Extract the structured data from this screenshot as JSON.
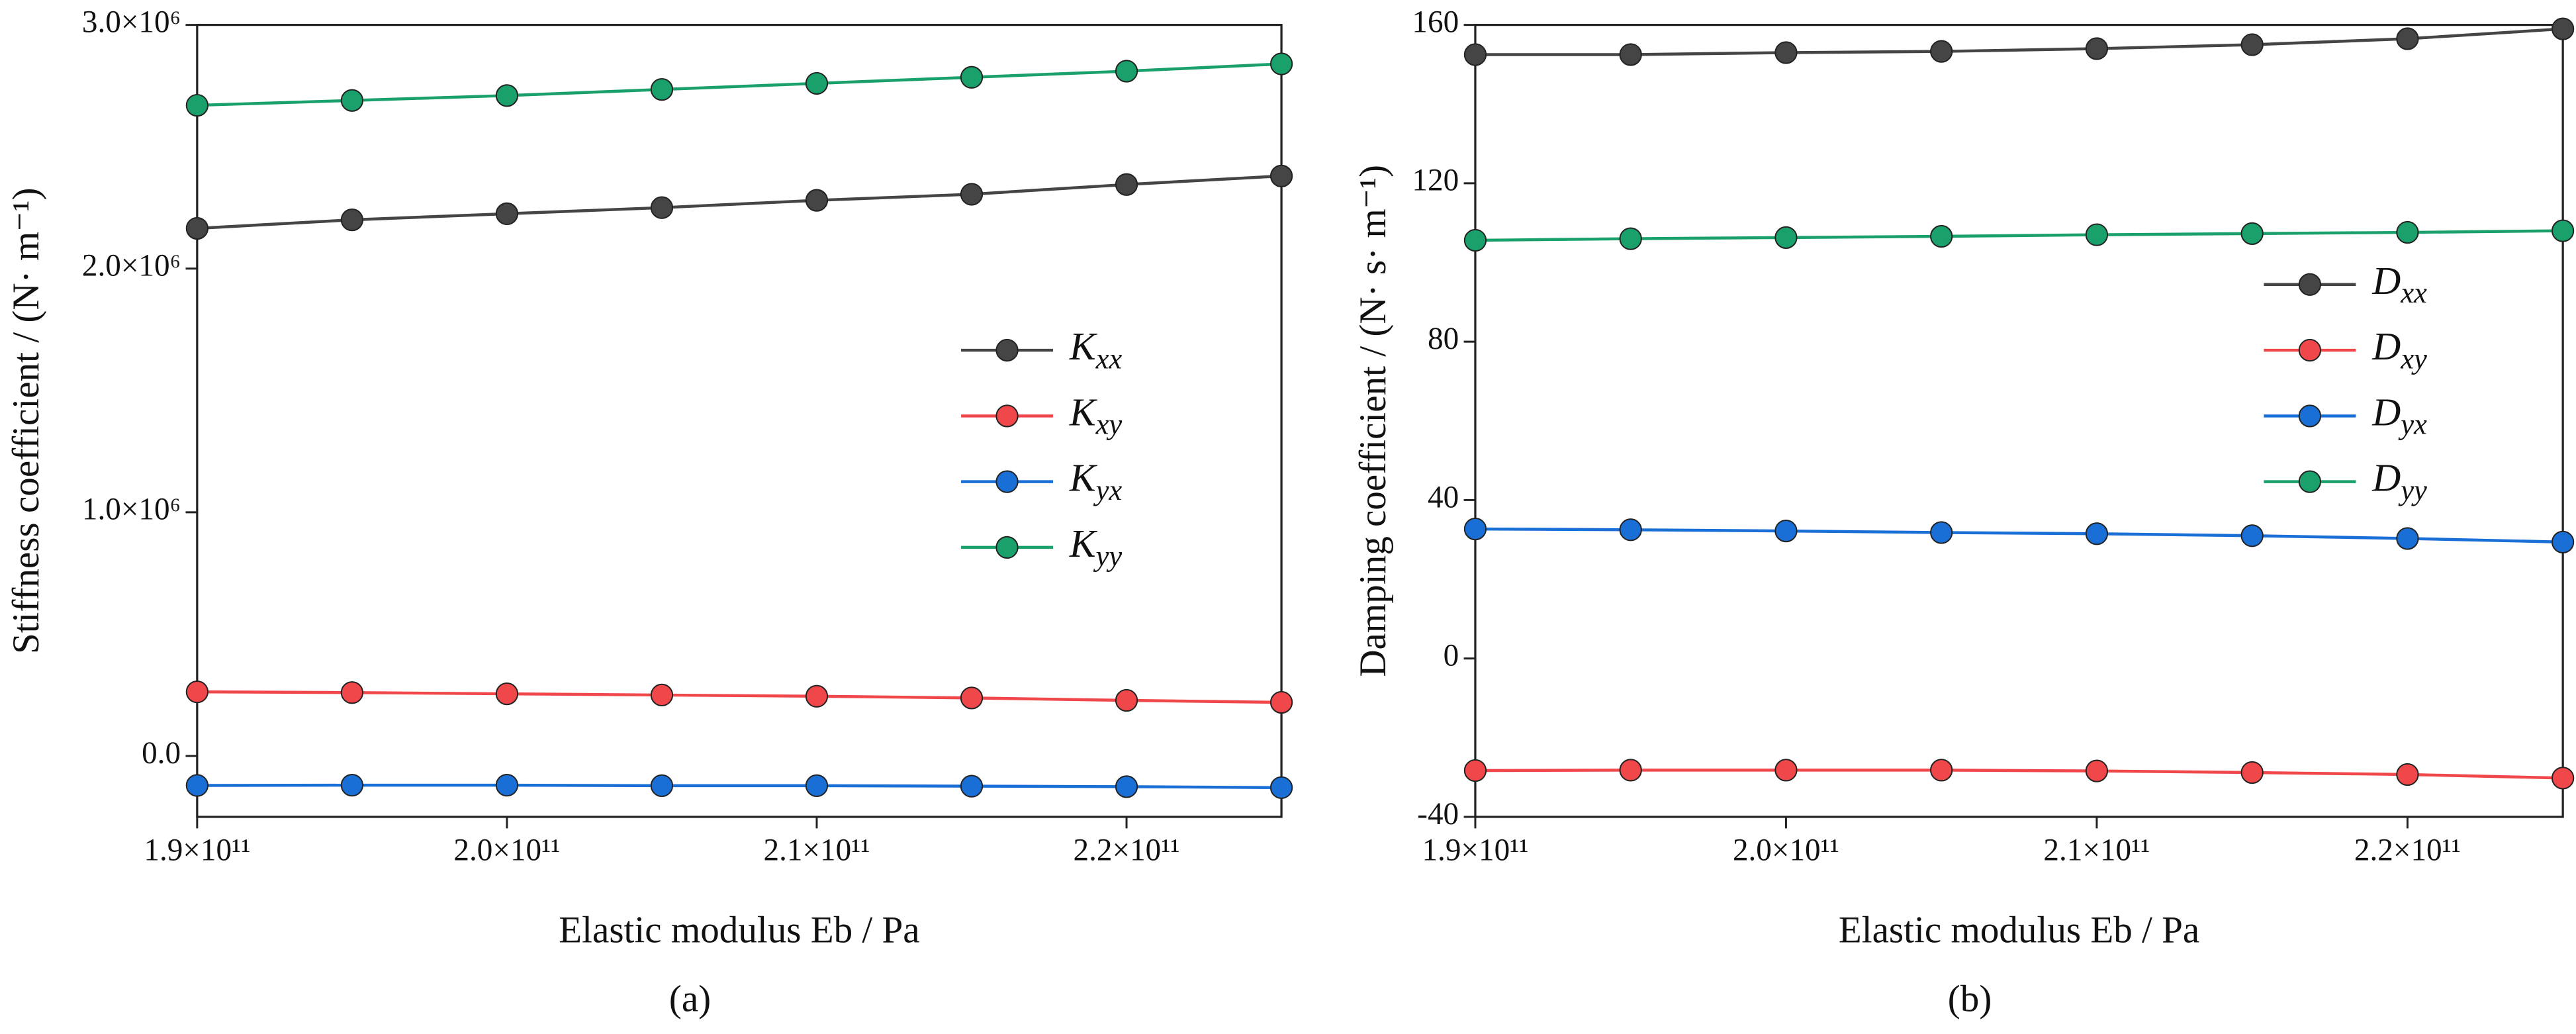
{
  "chart_data": [
    {
      "type": "line",
      "caption": "(a)",
      "xlabel": "Elastic modulus Eb / Pa",
      "ylabel": "Stiffness coefficient / (N· m⁻¹)",
      "x": [
        190000000000,
        195000000000,
        200000000000,
        205000000000,
        210000000000,
        215000000000,
        220000000000,
        225000000000
      ],
      "xlim": [
        190000000000,
        225000000000
      ],
      "xticks": [
        {
          "value": 190000000000,
          "label": "1.9×10¹¹"
        },
        {
          "value": 200000000000,
          "label": "2.0×10¹¹"
        },
        {
          "value": 210000000000,
          "label": "2.1×10¹¹"
        },
        {
          "value": 220000000000,
          "label": "2.2×10¹¹"
        }
      ],
      "ylim": [
        -250000,
        3000000
      ],
      "yticks": [
        {
          "value": 0,
          "label": "0.0"
        },
        {
          "value": 1000000,
          "label": "1.0×10⁶"
        },
        {
          "value": 2000000,
          "label": "2.0×10⁶"
        },
        {
          "value": 3000000,
          "label": "3.0×10⁶"
        }
      ],
      "series": [
        {
          "name": "Kxx",
          "color": "#454545",
          "values": [
            2165000,
            2200000,
            2225000,
            2250000,
            2280000,
            2305000,
            2345000,
            2380000
          ]
        },
        {
          "name": "Kxy",
          "color": "#f0484a",
          "values": [
            263000,
            260000,
            255000,
            250000,
            245000,
            238000,
            228000,
            220000
          ]
        },
        {
          "name": "Kyx",
          "color": "#1a6fd6",
          "values": [
            -121000,
            -120000,
            -120000,
            -122000,
            -122000,
            -124000,
            -126000,
            -130000
          ]
        },
        {
          "name": "Kyy",
          "color": "#1aa06a",
          "values": [
            2670000,
            2690000,
            2710000,
            2735000,
            2760000,
            2785000,
            2810000,
            2840000
          ]
        }
      ]
    },
    {
      "type": "line",
      "caption": "(b)",
      "xlabel": "Elastic modulus Eb / Pa",
      "ylabel": "Damping coefficient / (N· s· m⁻¹)",
      "x": [
        190000000000,
        195000000000,
        200000000000,
        205000000000,
        210000000000,
        215000000000,
        220000000000,
        225000000000
      ],
      "xlim": [
        190000000000,
        225000000000
      ],
      "xticks": [
        {
          "value": 190000000000,
          "label": "1.9×10¹¹"
        },
        {
          "value": 200000000000,
          "label": "2.0×10¹¹"
        },
        {
          "value": 210000000000,
          "label": "2.1×10¹¹"
        },
        {
          "value": 220000000000,
          "label": "2.2×10¹¹"
        }
      ],
      "ylim": [
        -40,
        160
      ],
      "yticks": [
        -40,
        0,
        40,
        80,
        120,
        160
      ],
      "series": [
        {
          "name": "Dxx",
          "color": "#454545",
          "values": [
            152.5,
            152.5,
            153,
            153.3,
            154,
            155,
            156.5,
            159
          ]
        },
        {
          "name": "Dxy",
          "color": "#f0484a",
          "values": [
            -28.3,
            -28.2,
            -28.2,
            -28.2,
            -28.4,
            -28.8,
            -29.3,
            -30.2
          ]
        },
        {
          "name": "Dyx",
          "color": "#1a6fd6",
          "values": [
            32.7,
            32.5,
            32.2,
            31.8,
            31.5,
            31,
            30.3,
            29.4
          ]
        },
        {
          "name": "Dyy",
          "color": "#1aa06a",
          "values": [
            105.6,
            106,
            106.3,
            106.6,
            107,
            107.3,
            107.6,
            108
          ]
        }
      ]
    }
  ]
}
